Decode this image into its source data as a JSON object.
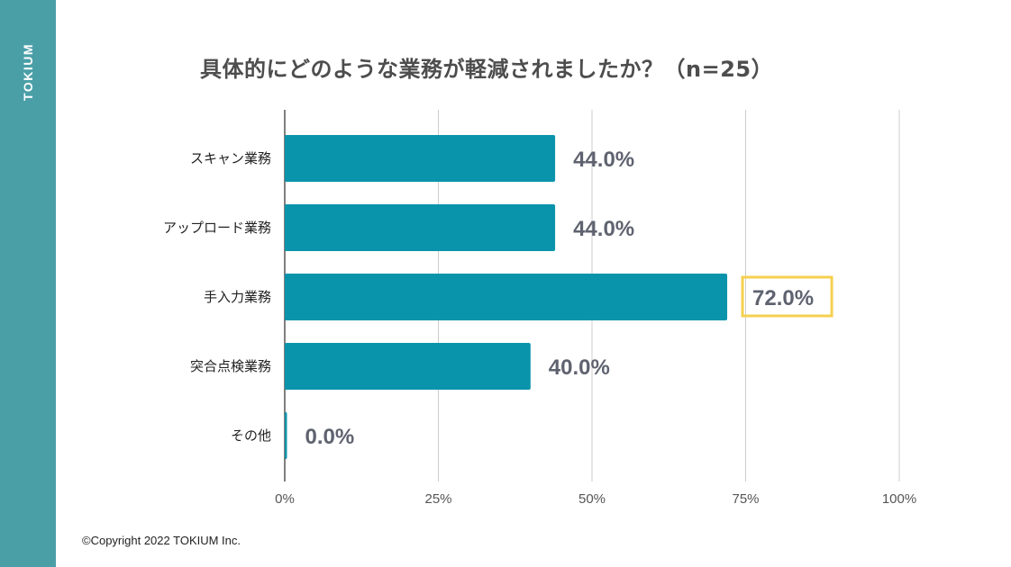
{
  "brand": "TOKIUM",
  "copyright": "©Copyright 2022 TOKIUM Inc.",
  "colors": {
    "bar": "#0a94ab",
    "highlight": "#f5d04f",
    "sidebar": "#4a9fa7",
    "grid": "#cccccc"
  },
  "chart_data": {
    "type": "bar",
    "orientation": "horizontal",
    "title": "具体的にどのような業務が軽減されましたか？（n=25）",
    "categories": [
      "スキャン業務",
      "アップロード業務",
      "手入力業務",
      "突合点検業務",
      "その他"
    ],
    "values": [
      44.0,
      44.0,
      72.0,
      40.0,
      0.0
    ],
    "value_labels": [
      "44.0%",
      "44.0%",
      "72.0%",
      "40.0%",
      "0.0%"
    ],
    "highlighted": "手入力業務",
    "xlim": [
      0,
      100
    ],
    "xticks": [
      0,
      25,
      50,
      75,
      100
    ],
    "xtick_labels": [
      "0%",
      "25%",
      "50%",
      "75%",
      "100%"
    ],
    "xlabel": "",
    "ylabel": "",
    "grid": true
  }
}
